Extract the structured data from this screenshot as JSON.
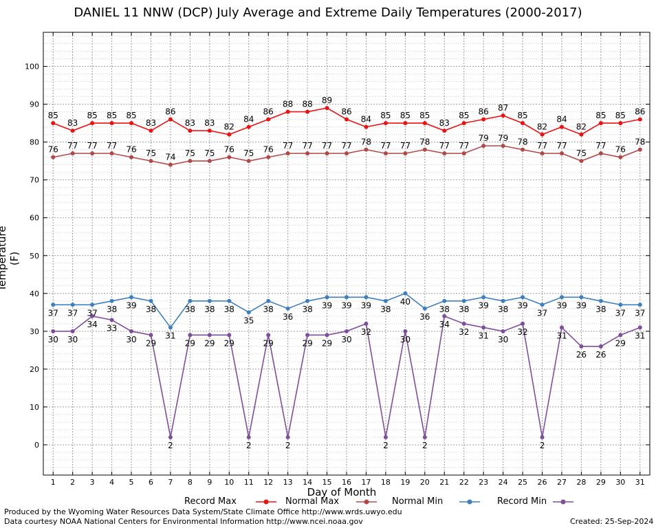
{
  "colors": {
    "record_max": "#ee1111",
    "normal_max": "#b24848",
    "normal_min": "#3e7fbf",
    "record_min": "#7d4e9b",
    "grid_major": "#999999",
    "grid_minor": "#cfcfcf"
  },
  "chart_data": {
    "type": "line",
    "title": "DANIEL 11 NNW (DCP) July Average and Extreme Daily Temperatures (2000-2017)",
    "xlabel": "Day of Month",
    "ylabel": "Temperature (F)",
    "x": [
      1,
      2,
      3,
      4,
      5,
      6,
      7,
      8,
      9,
      10,
      11,
      12,
      13,
      14,
      15,
      16,
      17,
      18,
      19,
      20,
      21,
      22,
      23,
      24,
      25,
      26,
      27,
      28,
      29,
      30,
      31
    ],
    "xlim": [
      0.5,
      31.5
    ],
    "ylim": [
      -8,
      109
    ],
    "yticks": [
      0,
      10,
      20,
      30,
      40,
      50,
      60,
      70,
      80,
      90,
      100
    ],
    "grid": true,
    "legend_position": "bottom",
    "series": [
      {
        "name": "Record Max",
        "color_key": "record_max",
        "label_pos": "above",
        "values": [
          85,
          83,
          85,
          85,
          85,
          83,
          86,
          83,
          83,
          82,
          84,
          86,
          88,
          88,
          89,
          86,
          84,
          85,
          85,
          85,
          83,
          85,
          86,
          87,
          85,
          82,
          84,
          82,
          85,
          85,
          86
        ]
      },
      {
        "name": "Normal Max",
        "color_key": "normal_max",
        "label_pos": "above",
        "values": [
          76,
          77,
          77,
          77,
          76,
          75,
          74,
          75,
          75,
          76,
          75,
          76,
          77,
          77,
          77,
          77,
          78,
          77,
          77,
          78,
          77,
          77,
          79,
          79,
          78,
          77,
          77,
          75,
          77,
          76,
          78
        ]
      },
      {
        "name": "Normal Min",
        "color_key": "normal_min",
        "label_pos": "below",
        "values": [
          37,
          37,
          37,
          38,
          39,
          38,
          31,
          38,
          38,
          38,
          35,
          38,
          36,
          38,
          39,
          39,
          39,
          38,
          40,
          36,
          38,
          38,
          39,
          38,
          39,
          37,
          39,
          39,
          38,
          37,
          37
        ]
      },
      {
        "name": "Record Min",
        "color_key": "record_min",
        "label_pos": "below",
        "values": [
          30,
          30,
          34,
          33,
          30,
          29,
          2,
          29,
          29,
          29,
          2,
          29,
          2,
          29,
          29,
          30,
          32,
          2,
          30,
          2,
          34,
          32,
          31,
          30,
          32,
          2,
          31,
          26,
          26,
          29,
          31
        ]
      }
    ]
  },
  "footer": {
    "produced_by": "Produced by the Wyoming Water Resources Data System/State Climate Office http://www.wrds.uwyo.edu",
    "courtesy": "Data courtesy NOAA National Centers for Environmental Information http://www.ncei.noaa.gov",
    "created": "Created: 25-Sep-2024"
  }
}
